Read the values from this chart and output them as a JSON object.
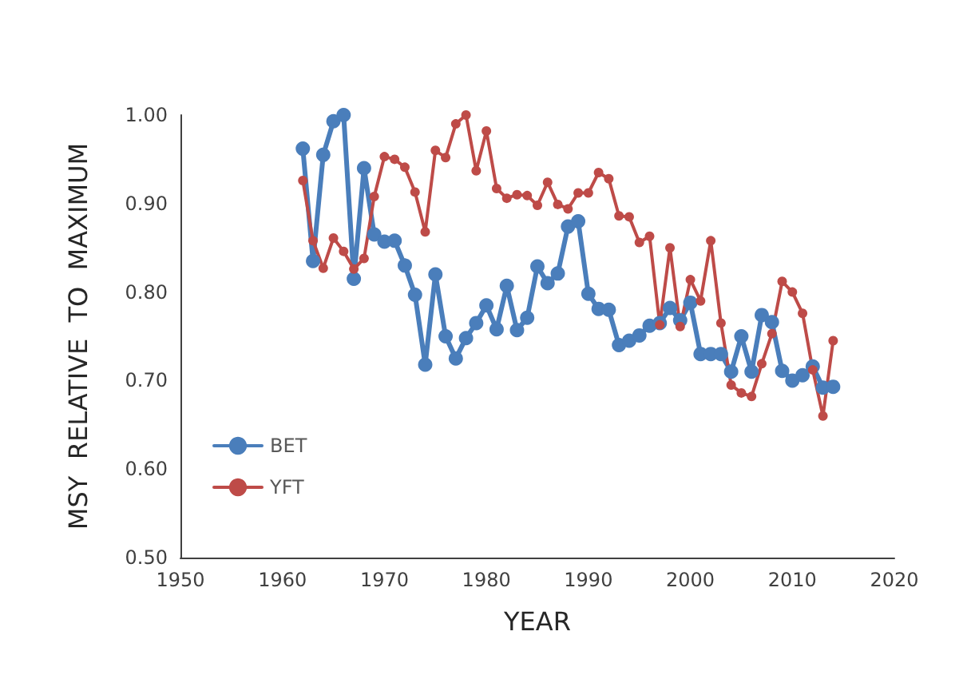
{
  "chart_data": {
    "type": "line",
    "xlabel": "YEAR",
    "ylabel": "MSY  RELATIVE  TO  MAXIMUM",
    "x": [
      1962,
      1963,
      1964,
      1965,
      1966,
      1967,
      1968,
      1969,
      1970,
      1971,
      1972,
      1973,
      1974,
      1975,
      1976,
      1977,
      1978,
      1979,
      1980,
      1981,
      1982,
      1983,
      1984,
      1985,
      1986,
      1987,
      1988,
      1989,
      1990,
      1991,
      1992,
      1993,
      1994,
      1995,
      1996,
      1997,
      1998,
      1999,
      2000,
      2001,
      2002,
      2003,
      2004,
      2005,
      2006,
      2007,
      2008,
      2009,
      2010,
      2011,
      2012,
      2013,
      2014
    ],
    "series": [
      {
        "name": "BET",
        "color": "#4a7ebb",
        "values": [
          0.962,
          0.835,
          0.955,
          0.993,
          1.0,
          0.815,
          0.94,
          0.865,
          0.857,
          0.858,
          0.83,
          0.797,
          0.718,
          0.82,
          0.75,
          0.725,
          0.748,
          0.765,
          0.785,
          0.758,
          0.807,
          0.757,
          0.771,
          0.829,
          0.81,
          0.821,
          0.874,
          0.88,
          0.798,
          0.781,
          0.78,
          0.74,
          0.745,
          0.751,
          0.762,
          0.765,
          0.782,
          0.768,
          0.788,
          0.73,
          0.73,
          0.73,
          0.71,
          0.75,
          0.71,
          0.774,
          0.766,
          0.711,
          0.7,
          0.706,
          0.716,
          0.692,
          0.693
        ]
      },
      {
        "name": "YFT",
        "color": "#be4b48",
        "values": [
          0.926,
          0.858,
          0.827,
          0.861,
          0.846,
          0.826,
          0.838,
          0.908,
          0.953,
          0.95,
          0.941,
          0.913,
          0.868,
          0.96,
          0.952,
          0.99,
          1.0,
          0.937,
          0.982,
          0.917,
          0.906,
          0.91,
          0.909,
          0.898,
          0.924,
          0.899,
          0.894,
          0.912,
          0.912,
          0.935,
          0.928,
          0.886,
          0.885,
          0.856,
          0.863,
          0.763,
          0.85,
          0.761,
          0.814,
          0.79,
          0.858,
          0.765,
          0.695,
          0.686,
          0.682,
          0.719,
          0.753,
          0.812,
          0.8,
          0.776,
          0.712,
          0.66,
          0.745
        ]
      }
    ],
    "xlim": [
      1950,
      2020
    ],
    "xticks": [
      1950,
      1960,
      1970,
      1980,
      1990,
      2000,
      2010,
      2020
    ],
    "ylim": [
      0.5,
      1.0
    ],
    "yticks": [
      {
        "value": 0.5,
        "label": "0.50"
      },
      {
        "value": 0.6,
        "label": "0.60"
      },
      {
        "value": 0.7,
        "label": "0.70"
      },
      {
        "value": 0.8,
        "label": "0.80"
      },
      {
        "value": 0.9,
        "label": "0.90"
      },
      {
        "value": 1.0,
        "label": "1.00"
      }
    ],
    "grid": false,
    "legend": "left",
    "marker": "circle",
    "line_style": "solid"
  }
}
